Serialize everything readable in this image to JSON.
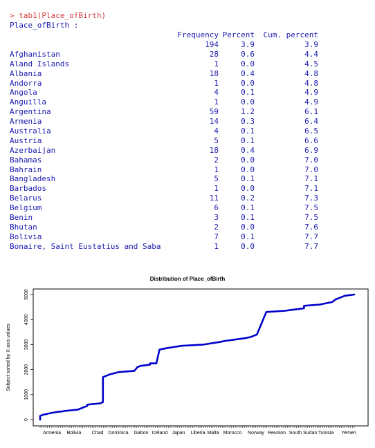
{
  "console": {
    "command": "> tab1(Place_ofBirth)",
    "variable_header": "Place_ofBirth :",
    "columns": [
      "Frequency",
      "Percent",
      "Cum. percent"
    ],
    "rows": [
      {
        "name": "",
        "freq": "194",
        "pct": "3.9",
        "cum": "3.9"
      },
      {
        "name": "Afghanistan",
        "freq": "28",
        "pct": "0.6",
        "cum": "4.4"
      },
      {
        "name": "Aland Islands",
        "freq": "1",
        "pct": "0.0",
        "cum": "4.5"
      },
      {
        "name": "Albania",
        "freq": "18",
        "pct": "0.4",
        "cum": "4.8"
      },
      {
        "name": "Andorra",
        "freq": "1",
        "pct": "0.0",
        "cum": "4.8"
      },
      {
        "name": "Angola",
        "freq": "4",
        "pct": "0.1",
        "cum": "4.9"
      },
      {
        "name": "Anguilla",
        "freq": "1",
        "pct": "0.0",
        "cum": "4.9"
      },
      {
        "name": "Argentina",
        "freq": "59",
        "pct": "1.2",
        "cum": "6.1"
      },
      {
        "name": "Armenia",
        "freq": "14",
        "pct": "0.3",
        "cum": "6.4"
      },
      {
        "name": "Australia",
        "freq": "4",
        "pct": "0.1",
        "cum": "6.5"
      },
      {
        "name": "Austria",
        "freq": "5",
        "pct": "0.1",
        "cum": "6.6"
      },
      {
        "name": "Azerbaijan",
        "freq": "18",
        "pct": "0.4",
        "cum": "6.9"
      },
      {
        "name": "Bahamas",
        "freq": "2",
        "pct": "0.0",
        "cum": "7.0"
      },
      {
        "name": "Bahrain",
        "freq": "1",
        "pct": "0.0",
        "cum": "7.0"
      },
      {
        "name": "Bangladesh",
        "freq": "5",
        "pct": "0.1",
        "cum": "7.1"
      },
      {
        "name": "Barbados",
        "freq": "1",
        "pct": "0.0",
        "cum": "7.1"
      },
      {
        "name": "Belarus",
        "freq": "11",
        "pct": "0.2",
        "cum": "7.3"
      },
      {
        "name": "Belgium",
        "freq": "6",
        "pct": "0.1",
        "cum": "7.5"
      },
      {
        "name": "Benin",
        "freq": "3",
        "pct": "0.1",
        "cum": "7.5"
      },
      {
        "name": "Bhutan",
        "freq": "2",
        "pct": "0.0",
        "cum": "7.6"
      },
      {
        "name": "Bolivia",
        "freq": "7",
        "pct": "0.1",
        "cum": "7.7"
      },
      {
        "name": "Bonaire, Saint Eustatius and Saba",
        "freq": "1",
        "pct": "0.0",
        "cum": "7.7"
      }
    ]
  },
  "colors": {
    "command": "#d23a3a",
    "console_text": "#1b1bb0",
    "plot_line": "#0000cc",
    "axis": "#000000"
  },
  "chart_data": {
    "type": "line",
    "title": "Distribution of Place_ofBirth",
    "ylabel": "Subject sorted by X-axis values",
    "xlabel": "",
    "yticks": [
      0,
      1000,
      2000,
      3000,
      4000,
      5000
    ],
    "ylim": [
      0,
      5000
    ],
    "xlabels": [
      "Armenia",
      "Bolivia",
      "Chad",
      "Dominica",
      "Gabon",
      "Iceland",
      "Japan",
      "Liberia",
      "Malta",
      "Morocco",
      "Norway",
      "Reunion",
      "South Sudan",
      "Tunisia",
      "Yemen"
    ],
    "xlim": [
      0,
      1
    ],
    "series": [
      {
        "x": [
          0.0,
          0.0,
          0.01,
          0.03,
          0.05,
          0.07,
          0.08,
          0.12,
          0.15,
          0.15,
          0.19,
          0.2,
          0.2,
          0.21,
          0.22,
          0.25,
          0.3,
          0.31,
          0.32,
          0.35,
          0.35,
          0.37,
          0.38,
          0.4,
          0.45,
          0.52,
          0.57,
          0.59,
          0.62,
          0.65,
          0.67,
          0.68,
          0.69,
          0.7,
          0.71,
          0.72,
          0.78,
          0.81,
          0.84,
          0.84,
          0.89,
          0.93,
          0.94,
          0.97,
          1.0
        ],
        "y": [
          0,
          150,
          200,
          250,
          300,
          330,
          350,
          400,
          550,
          600,
          650,
          700,
          1700,
          1750,
          1800,
          1900,
          1950,
          2100,
          2150,
          2200,
          2250,
          2250,
          2800,
          2850,
          2950,
          3000,
          3100,
          3150,
          3200,
          3250,
          3300,
          3350,
          3400,
          3700,
          4000,
          4300,
          4350,
          4400,
          4450,
          4550,
          4600,
          4700,
          4800,
          4950,
          5000
        ]
      }
    ]
  }
}
